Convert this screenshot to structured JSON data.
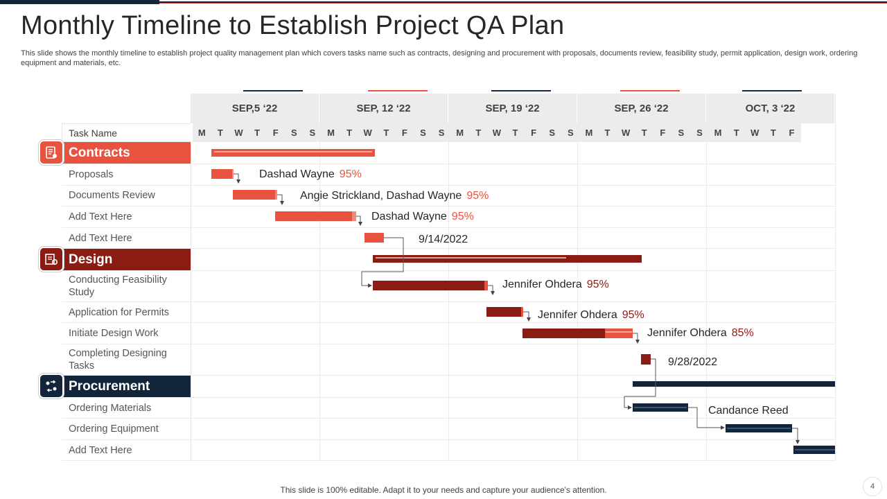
{
  "title": "Monthly Timeline to Establish Project QA Plan",
  "subtitle": "This slide shows the monthly timeline to establish project quality management plan which covers tasks name such as contracts, designing and procurement with proposals, documents review, feasibility study, permit application, design work, ordering equipment and materials, etc.",
  "footer": "This slide is 100% editable. Adapt it to your needs and capture your audience's attention.",
  "page_number": "4",
  "task_name_header": "Task Name",
  "weeks": [
    "SEP,5 ‘22",
    "SEP, 12 ‘22",
    "SEP, 19 ‘22",
    "SEP, 26 ‘22",
    "OCT, 3 ‘22"
  ],
  "days": [
    "M",
    "T",
    "W",
    "T",
    "F",
    "S",
    "S",
    "M",
    "T",
    "W",
    "T",
    "F",
    "S",
    "S",
    "M",
    "T",
    "W",
    "T",
    "F",
    "S",
    "S",
    "M",
    "T",
    "W",
    "T",
    "F",
    "S",
    "S",
    "M",
    "T",
    "W",
    "T",
    "F"
  ],
  "colors": {
    "contracts": "#e8533f",
    "contracts_light": "#f08a7a",
    "design": "#8b1c14",
    "design_light": "#e8533f",
    "procurement": "#13253a",
    "procurement_light": "#3d5670"
  },
  "categories": {
    "contracts": {
      "label": "Contracts",
      "icon": "contract-icon"
    },
    "design": {
      "label": "Design",
      "icon": "blueprint-icon"
    },
    "procurement": {
      "label": "Procurement",
      "icon": "exchange-icon"
    }
  },
  "tasks": {
    "proposals": {
      "label": "Proposals",
      "assignee": "Dashad Wayne",
      "progress": "95%"
    },
    "documents_review": {
      "label": "Documents Review",
      "assignee": "Angie Strickland, Dashad Wayne",
      "progress": "95%"
    },
    "add_text_1": {
      "label": "Add Text Here",
      "assignee": "Dashad Wayne",
      "progress": "95%"
    },
    "add_text_2": {
      "label": "Add Text Here",
      "milestone": "9/14/2022"
    },
    "feasibility": {
      "label": "Conducting Feasibility Study",
      "assignee": "Jennifer Ohdera",
      "progress": "95%"
    },
    "permits": {
      "label": "Application for Permits",
      "assignee": "Jennifer Ohdera",
      "progress": "95%"
    },
    "design_work": {
      "label": "Initiate Design Work",
      "assignee": "Jennifer Ohdera",
      "progress": "85%"
    },
    "designing_tasks": {
      "label": "Completing Designing Tasks",
      "milestone": "9/28/2022"
    },
    "ordering_materials": {
      "label": "Ordering Materials",
      "assignee": "Candance Reed"
    },
    "ordering_equipment": {
      "label": "Ordering Equipment"
    },
    "add_text_3": {
      "label": "Add Text Here"
    }
  }
}
